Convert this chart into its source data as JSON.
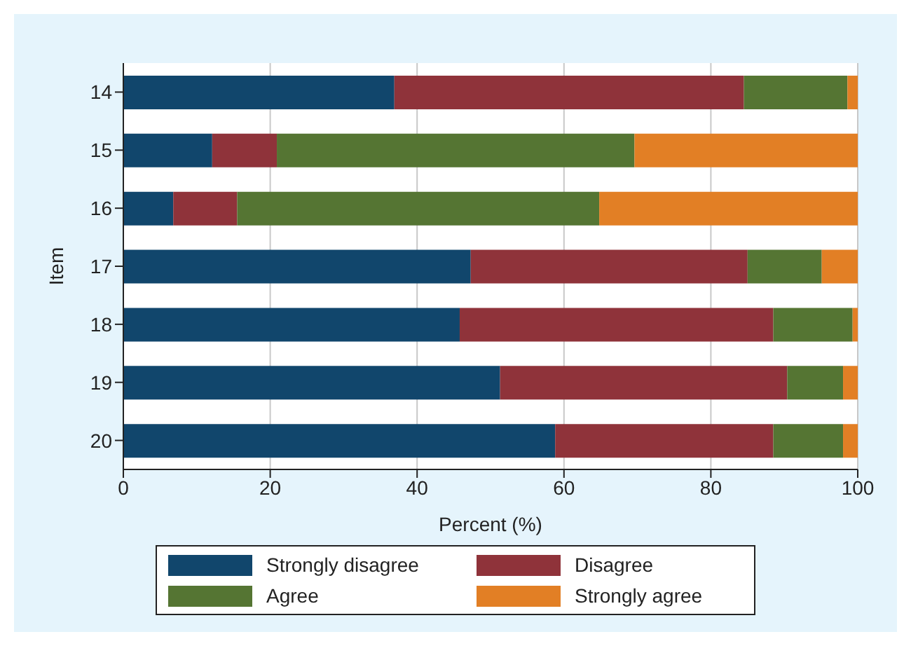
{
  "chart_data": {
    "type": "bar",
    "orientation": "horizontal",
    "stacked": true,
    "xlabel": "Percent (%)",
    "ylabel": "Item",
    "categories": [
      "14",
      "15",
      "16",
      "17",
      "18",
      "19",
      "20"
    ],
    "series": [
      {
        "name": "Strongly disagree",
        "color": "#11466c",
        "values": [
          36.9,
          12.1,
          6.8,
          47.3,
          45.8,
          51.3,
          58.8
        ]
      },
      {
        "name": "Disagree",
        "color": "#8f333a",
        "values": [
          47.6,
          8.8,
          8.7,
          37.7,
          42.7,
          39.1,
          29.7
        ]
      },
      {
        "name": "Agree",
        "color": "#557533",
        "values": [
          14.1,
          48.7,
          49.3,
          10.1,
          10.8,
          7.6,
          9.5
        ]
      },
      {
        "name": "Strongly agree",
        "color": "#e27f25",
        "values": [
          1.4,
          30.4,
          35.2,
          4.9,
          0.7,
          2.0,
          2.0
        ]
      }
    ],
    "xlim": [
      0,
      100
    ],
    "xticks": [
      0,
      20,
      40,
      60,
      80,
      100
    ],
    "grid": "x",
    "legend": "bottom"
  }
}
